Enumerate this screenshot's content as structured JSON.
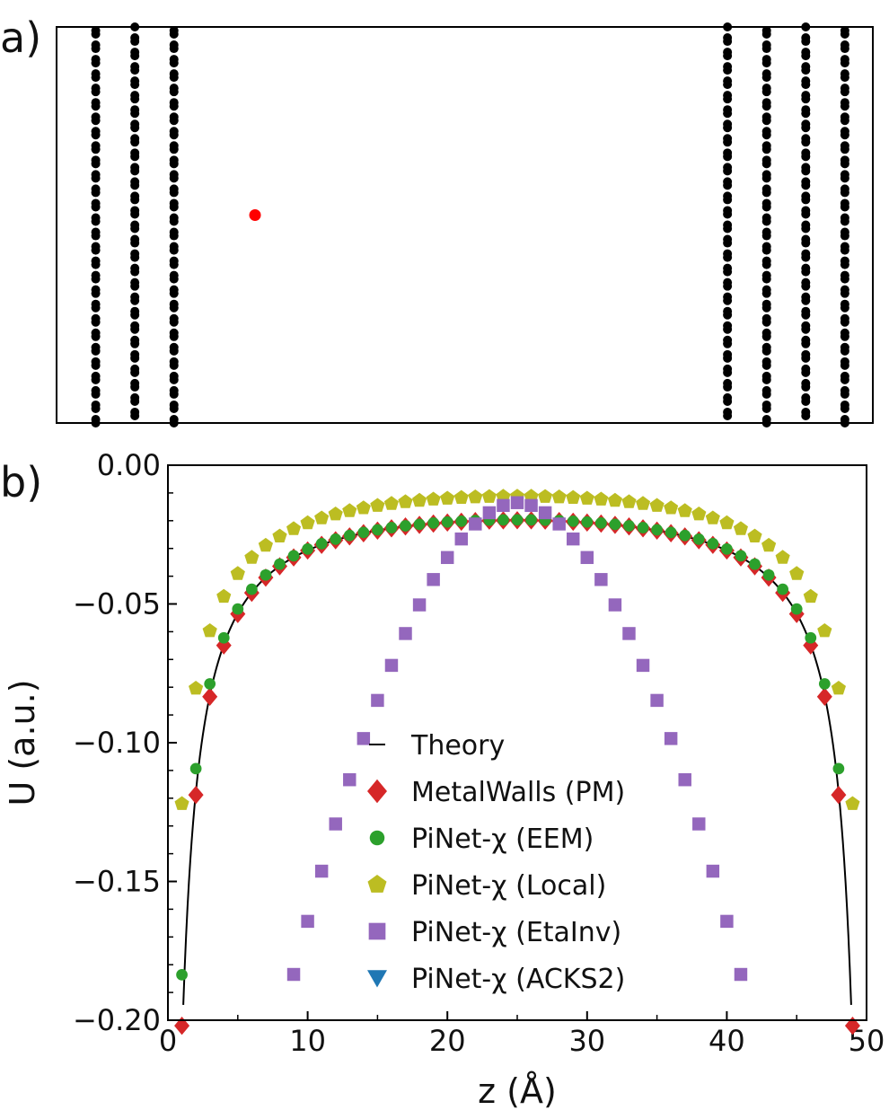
{
  "panel_labels": {
    "a": "a)",
    "b": "b)"
  },
  "chart_data": [
    {
      "type": "scatter",
      "panel": "a",
      "title": "",
      "xlim": [
        -4.2,
        54.2
      ],
      "ylim": [
        0,
        1
      ],
      "electrode_layers_z": [
        -1.4,
        1.4,
        4.2,
        43.8,
        46.6,
        49.4,
        52.2
      ],
      "atoms_per_layer": 28,
      "ion": {
        "z": 10.0,
        "y": 0.525,
        "color": "#ff0000"
      },
      "atom_color": "#000000"
    },
    {
      "type": "scatter",
      "panel": "b",
      "title": "",
      "xlabel": "z (Å)",
      "ylabel": "U (a.u.)",
      "xlim": [
        0,
        50
      ],
      "ylim": [
        -0.2,
        0.0
      ],
      "xticks": [
        0,
        10,
        20,
        30,
        40,
        50
      ],
      "xtick_labels": [
        "0",
        "10",
        "20",
        "30",
        "40",
        "50"
      ],
      "yticks": [
        0.0,
        -0.05,
        -0.1,
        -0.15,
        -0.2
      ],
      "ytick_labels": [
        "0.00",
        "−0.05",
        "−0.10",
        "−0.15",
        "−0.20"
      ],
      "legend_position": "center",
      "theory": {
        "name": "Theory",
        "color": "#000000",
        "d0": 0.22
      },
      "series": [
        {
          "name": "MetalWalls (PM)",
          "marker": "diamond",
          "color": "#d62728",
          "x_start": 1,
          "x_end": 49,
          "d0": 0.2
        },
        {
          "name": "PiNet-χ (EEM)",
          "marker": "circle",
          "color": "#2ca02c",
          "x_start": 1,
          "x_end": 48,
          "d0": 0.4
        },
        {
          "name": "PiNet-χ (Local)",
          "marker": "pentagon",
          "color": "#bcbd22",
          "x_start": 1,
          "x_end": 49,
          "d0": 0.2
        },
        {
          "name": "PiNet-χ (EtaInv)",
          "marker": "square",
          "color": "#9467bd",
          "x_start": 9,
          "x_end": 41
        },
        {
          "name": "PiNet-χ (ACKS2)",
          "marker": "triangle-down",
          "color": "#1f77b4",
          "x_start": 1,
          "x_end": 48
        }
      ]
    }
  ]
}
